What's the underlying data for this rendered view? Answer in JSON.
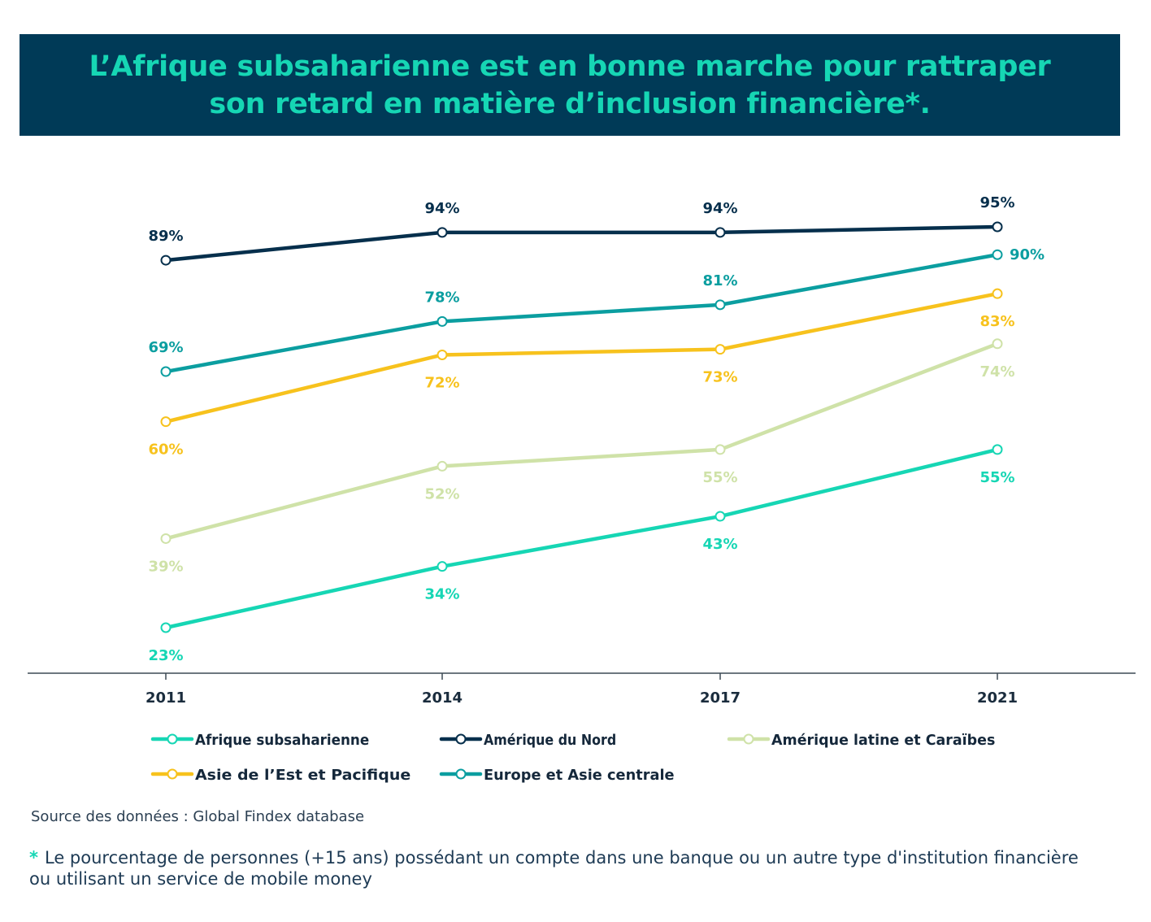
{
  "title": {
    "line1": "L’Afrique subsaharienne est en bonne marche pour rattraper",
    "line2": "son retard en matière d’inclusion financière*."
  },
  "source": "Source des données : Global Findex database",
  "footnote": {
    "star": "*",
    "text": "Le pourcentage de personnes (+15 ans) possédant un compte dans une banque ou un autre type d'institution financière ou utilisant un service de mobile money"
  },
  "chart_data": {
    "type": "line",
    "title": "L’Afrique subsaharienne est en bonne marche pour rattraper son retard en matière d’inclusion financière*.",
    "xlabel": "",
    "ylabel": "",
    "categories": [
      "2011",
      "2014",
      "2017",
      "2021"
    ],
    "ylim": [
      0,
      100
    ],
    "grid": false,
    "legend": "bottom",
    "series": [
      {
        "name": "Afrique subsaharienne",
        "color": "#16d6b4",
        "values": [
          23,
          34,
          43,
          55
        ],
        "labels": [
          "23%",
          "34%",
          "43%",
          "55%"
        ],
        "label_pos": [
          "below",
          "below",
          "below",
          "below"
        ]
      },
      {
        "name": "Amérique du Nord",
        "color": "#062f4c",
        "values": [
          89,
          94,
          94,
          95
        ],
        "labels": [
          "89%",
          "94%",
          "94%",
          "95%"
        ],
        "label_pos": [
          "above",
          "above",
          "above",
          "above"
        ]
      },
      {
        "name": "Amérique latine et Caraïbes",
        "color": "#cfe2a8",
        "values": [
          39,
          52,
          55,
          74
        ],
        "labels": [
          "39%",
          "52%",
          "55%",
          "74%"
        ],
        "label_pos": [
          "below",
          "below",
          "below",
          "below"
        ]
      },
      {
        "name": "Asie de l’Est et Pacifique",
        "color": "#f7c21d",
        "values": [
          60,
          72,
          73,
          83
        ],
        "labels": [
          "60%",
          "72%",
          "73%",
          "83%"
        ],
        "label_pos": [
          "below",
          "below",
          "below",
          "below"
        ]
      },
      {
        "name": "Europe et Asie centrale",
        "color": "#0b9ea0",
        "values": [
          69,
          78,
          81,
          90
        ],
        "labels": [
          "69%",
          "78%",
          "81%",
          "90%"
        ],
        "label_pos": [
          "above",
          "above",
          "above",
          "right"
        ]
      }
    ]
  }
}
